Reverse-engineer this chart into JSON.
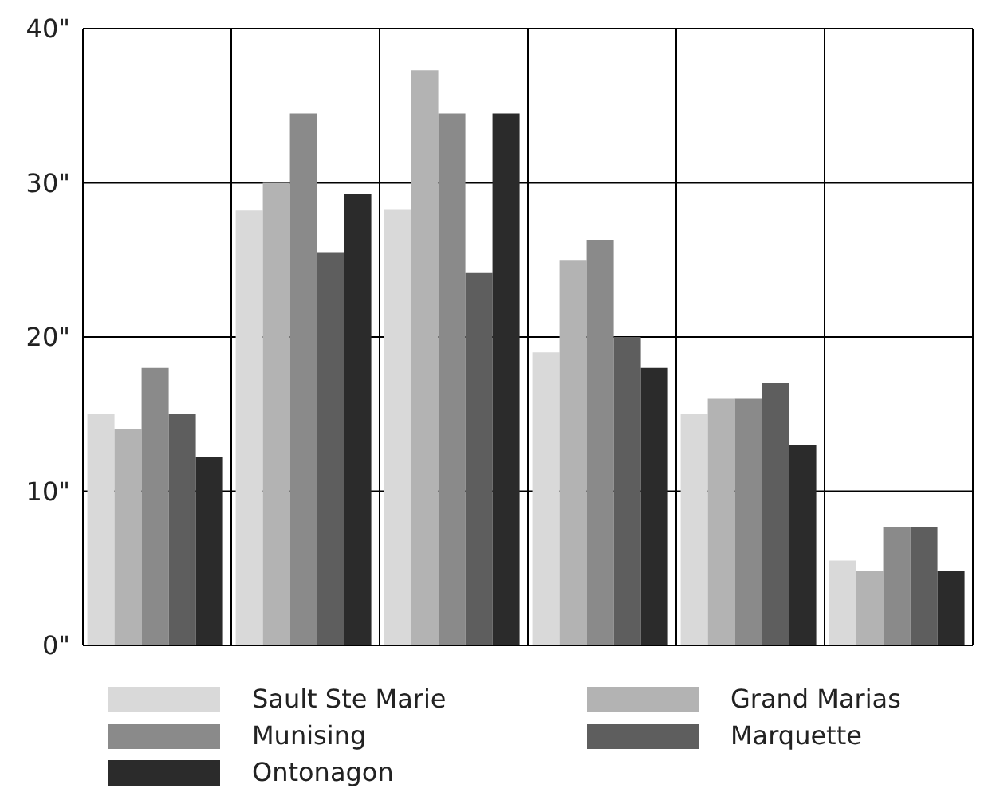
{
  "chart_data": {
    "type": "bar",
    "categories": [
      null,
      null,
      null,
      null,
      null,
      null
    ],
    "series": [
      {
        "name": "Sault Ste Marie",
        "color": "#d9d9d9",
        "values": [
          15,
          28.2,
          28.3,
          19,
          15,
          5.5
        ]
      },
      {
        "name": "Grand Marias",
        "color": "#b3b3b3",
        "values": [
          14,
          30,
          37.3,
          25,
          16,
          4.8
        ]
      },
      {
        "name": "Munising",
        "color": "#8a8a8a",
        "values": [
          18,
          34.5,
          34.5,
          26.3,
          16,
          7.7
        ]
      },
      {
        "name": "Marquette",
        "color": "#5e5e5e",
        "values": [
          15,
          25.5,
          24.2,
          20,
          17,
          7.7
        ]
      },
      {
        "name": "Ontonagon",
        "color": "#2b2b2b",
        "values": [
          12.2,
          29.3,
          34.5,
          18,
          13,
          4.8
        ]
      }
    ],
    "ylim": [
      0,
      40
    ],
    "yticks": [
      {
        "value": 0,
        "label": "0\""
      },
      {
        "value": 10,
        "label": "10\""
      },
      {
        "value": 20,
        "label": "20\""
      },
      {
        "value": 30,
        "label": "30\""
      },
      {
        "value": 40,
        "label": "40\""
      }
    ],
    "grid": true,
    "legend": "bottom"
  }
}
